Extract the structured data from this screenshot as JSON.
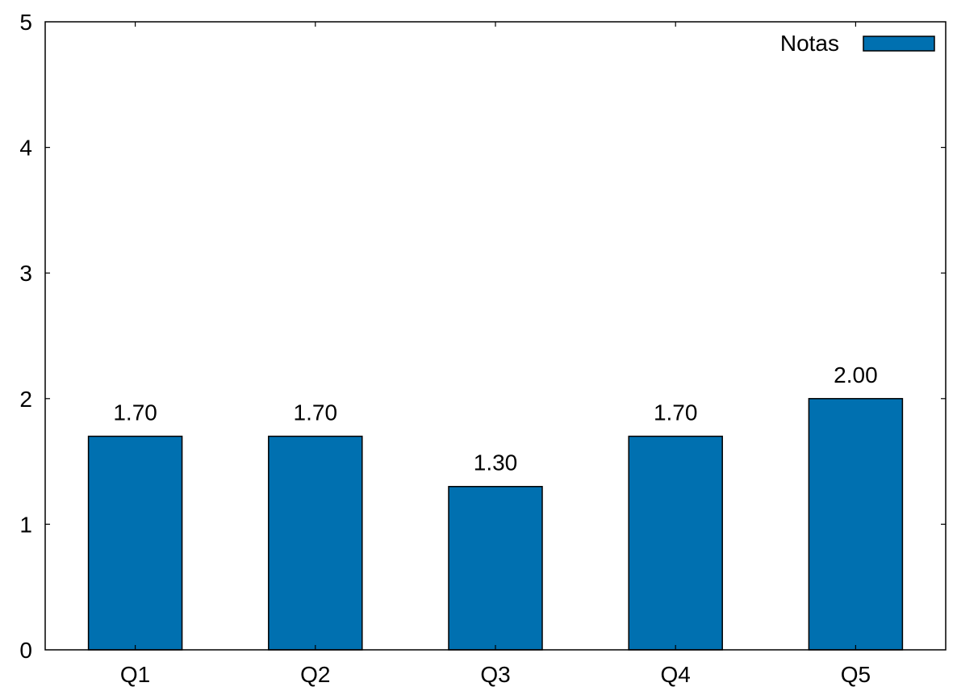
{
  "chart_data": {
    "type": "bar",
    "categories": [
      "Q1",
      "Q2",
      "Q3",
      "Q4",
      "Q5"
    ],
    "series": [
      {
        "name": "Notas",
        "values": [
          1.7,
          1.7,
          1.3,
          1.7,
          2.0
        ],
        "color": "#0070b0"
      }
    ],
    "data_labels": [
      "1.70",
      "1.70",
      "1.30",
      "1.70",
      "2.00"
    ],
    "ylim": [
      0,
      5
    ],
    "yticks": [
      "0",
      "1",
      "2",
      "3",
      "4",
      "5"
    ],
    "title": "",
    "xlabel": "",
    "ylabel": "",
    "grid": false,
    "legend": {
      "placement": "top-right",
      "entries": [
        "Notas"
      ]
    }
  }
}
